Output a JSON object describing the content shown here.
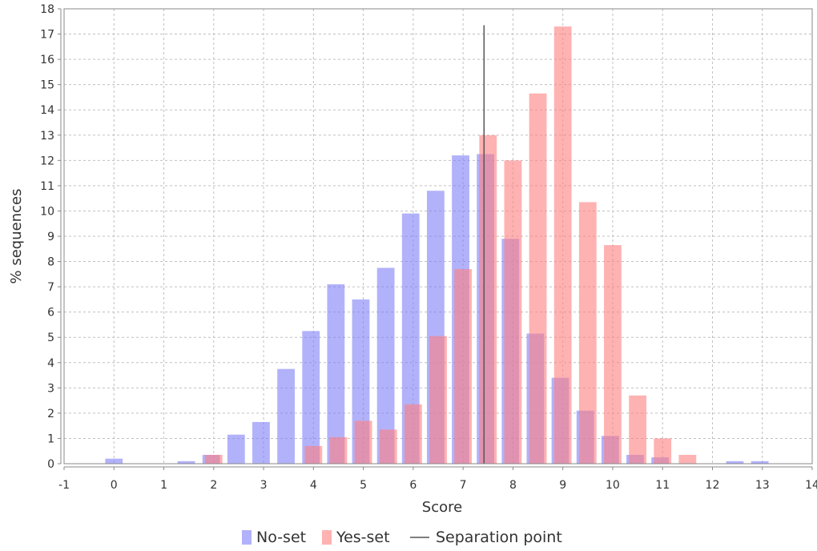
{
  "chart_data": {
    "type": "bar",
    "title": "",
    "xlabel": "Score",
    "ylabel": "% sequences",
    "xlim": [
      -1.0,
      14.0
    ],
    "ylim": [
      0,
      18
    ],
    "xticks": [
      -1,
      0,
      1,
      2,
      3,
      4,
      5,
      6,
      7,
      8,
      9,
      10,
      11,
      12,
      13,
      14
    ],
    "yticks": [
      0,
      1,
      2,
      3,
      4,
      5,
      6,
      7,
      8,
      9,
      10,
      11,
      12,
      13,
      14,
      15,
      16,
      17,
      18
    ],
    "grid": true,
    "legend_position": "bottom-center",
    "bar_width": 0.35,
    "series": [
      {
        "name": "No-set",
        "color": "#7f7ff7",
        "x": [
          0.0,
          1.45,
          1.95,
          2.45,
          2.95,
          3.45,
          3.95,
          4.45,
          4.95,
          5.45,
          5.95,
          6.45,
          6.95,
          7.45,
          7.95,
          8.45,
          8.95,
          9.45,
          9.95,
          10.45,
          10.95,
          12.45,
          12.95
        ],
        "values": [
          0.2,
          0.1,
          0.35,
          1.15,
          1.65,
          3.75,
          5.25,
          7.1,
          6.5,
          7.75,
          9.9,
          10.8,
          12.2,
          12.25,
          8.9,
          5.15,
          3.4,
          2.1,
          1.1,
          0.35,
          0.25,
          0.1,
          0.1
        ]
      },
      {
        "name": "Yes-set",
        "color": "#ff7f7f",
        "x": [
          2.0,
          4.0,
          4.5,
          5.0,
          5.5,
          6.0,
          6.5,
          7.0,
          7.5,
          8.0,
          8.5,
          9.0,
          9.5,
          10.0,
          10.5,
          11.0,
          11.5
        ],
        "values": [
          0.35,
          0.7,
          1.05,
          1.7,
          1.35,
          2.35,
          5.05,
          7.7,
          13.0,
          12.0,
          14.65,
          17.3,
          10.35,
          8.65,
          2.7,
          1.0,
          0.35
        ]
      }
    ],
    "separation_point": {
      "name": "Separation point",
      "x": 7.42,
      "y_top": 17.35,
      "color": "#555555"
    },
    "legend": [
      {
        "label": "No-set",
        "color": "#7f7ff7",
        "kind": "box"
      },
      {
        "label": "Yes-set",
        "color": "#ff7f7f",
        "kind": "box"
      },
      {
        "label": "Separation point",
        "color": "#555555",
        "kind": "line"
      }
    ]
  }
}
